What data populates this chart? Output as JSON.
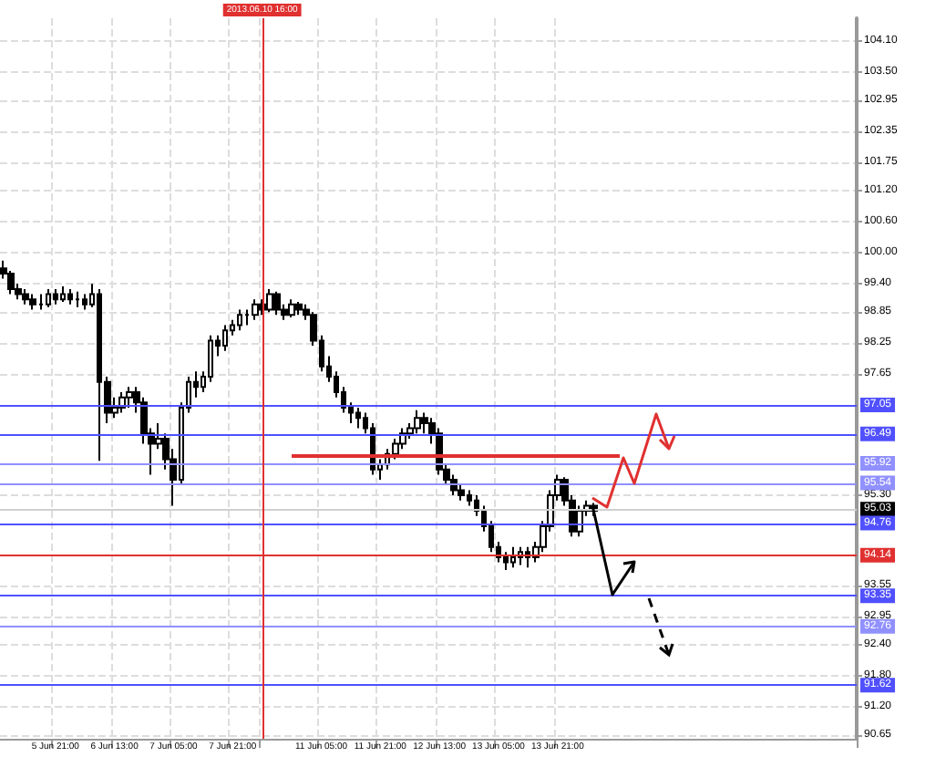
{
  "chart_data": {
    "type": "candlestick",
    "categories": [
      null,
      null,
      null,
      null,
      null,
      null,
      null,
      "5 Jun 21:00",
      null,
      null,
      null,
      null,
      null,
      null,
      null,
      "6 Jun 13:00",
      null,
      null,
      null,
      null,
      null,
      null,
      null,
      "7 Jun 05:00",
      null,
      null,
      null,
      null,
      null,
      null,
      null,
      "7 Jun 21:00",
      null,
      null,
      null,
      "2013.06.10 16:00",
      null,
      null,
      null,
      null,
      null,
      null,
      null,
      "11 Jun 05:00",
      null,
      null,
      null,
      null,
      null,
      null,
      null,
      "11 Jun 21:00",
      null,
      null,
      null,
      null,
      null,
      null,
      null,
      "12 Jun 13:00",
      null,
      null,
      null,
      null,
      null,
      null,
      null,
      "13 Jun 05:00",
      null,
      null,
      null,
      null,
      null,
      null,
      null,
      "13 Jun 21:00",
      null,
      null,
      null,
      null,
      null,
      null,
      null,
      null,
      null,
      null,
      null,
      null,
      null,
      null,
      null,
      null,
      null,
      null,
      null,
      null,
      null,
      null,
      null,
      null,
      null,
      null,
      null,
      null,
      null,
      null,
      null,
      null,
      null,
      null,
      null,
      null,
      null,
      null,
      null,
      null
    ],
    "ohlc": [
      [
        99.7,
        99.85,
        99.5,
        99.6
      ],
      [
        99.6,
        99.65,
        99.2,
        99.3
      ],
      [
        99.3,
        99.4,
        99.1,
        99.2
      ],
      [
        99.2,
        99.3,
        99.0,
        99.1
      ],
      [
        99.1,
        99.2,
        98.9,
        99.0
      ],
      [
        99.0,
        99.2,
        98.9,
        99.0
      ],
      [
        99.0,
        99.3,
        98.95,
        99.2
      ],
      [
        99.2,
        99.3,
        99.0,
        99.1
      ],
      [
        99.1,
        99.35,
        99.05,
        99.2
      ],
      [
        99.2,
        99.3,
        99.0,
        99.1
      ],
      [
        99.1,
        99.25,
        98.95,
        99.1
      ],
      [
        99.1,
        99.2,
        98.9,
        99.0
      ],
      [
        99.0,
        99.4,
        98.95,
        99.2
      ],
      [
        99.2,
        99.3,
        95.97,
        97.5
      ],
      [
        97.5,
        97.6,
        96.7,
        96.9
      ],
      [
        96.9,
        97.2,
        96.8,
        97.0
      ],
      [
        97.0,
        97.3,
        96.9,
        97.2
      ],
      [
        97.2,
        97.4,
        97.0,
        97.3
      ],
      [
        97.3,
        97.4,
        96.9,
        97.1
      ],
      [
        97.1,
        97.2,
        96.3,
        96.5
      ],
      [
        96.5,
        96.6,
        95.7,
        96.3
      ],
      [
        96.3,
        96.7,
        96.2,
        96.4
      ],
      [
        96.4,
        96.5,
        95.8,
        96.0
      ],
      [
        96.0,
        96.2,
        95.1,
        95.6
      ],
      [
        95.6,
        97.1,
        95.5,
        97.0
      ],
      [
        97.0,
        97.6,
        96.9,
        97.5
      ],
      [
        97.5,
        97.7,
        97.2,
        97.4
      ],
      [
        97.4,
        97.7,
        97.3,
        97.6
      ],
      [
        97.6,
        98.4,
        97.5,
        98.3
      ],
      [
        98.3,
        98.4,
        98.0,
        98.2
      ],
      [
        98.2,
        98.6,
        98.1,
        98.5
      ],
      [
        98.5,
        98.7,
        98.4,
        98.6
      ],
      [
        98.6,
        98.9,
        98.5,
        98.8
      ],
      [
        98.8,
        98.9,
        98.6,
        98.8
      ],
      [
        98.8,
        99.1,
        98.7,
        99.0
      ],
      [
        99.0,
        99.1,
        98.8,
        98.9
      ],
      [
        98.9,
        99.3,
        98.85,
        99.2
      ],
      [
        99.2,
        99.25,
        98.8,
        98.9
      ],
      [
        98.9,
        99.0,
        98.7,
        98.8
      ],
      [
        98.8,
        99.1,
        98.75,
        99.0
      ],
      [
        99.0,
        99.05,
        98.8,
        98.9
      ],
      [
        98.9,
        99.0,
        98.7,
        98.8
      ],
      [
        98.8,
        98.85,
        98.2,
        98.3
      ],
      [
        98.3,
        98.4,
        97.7,
        97.8
      ],
      [
        97.8,
        98.0,
        97.5,
        97.6
      ],
      [
        97.6,
        97.7,
        97.2,
        97.3
      ],
      [
        97.3,
        97.4,
        96.9,
        97.0
      ],
      [
        97.0,
        97.1,
        96.7,
        96.9
      ],
      [
        96.9,
        97.0,
        96.6,
        96.8
      ],
      [
        96.8,
        96.9,
        96.5,
        96.6
      ],
      [
        96.6,
        96.7,
        95.7,
        95.8
      ],
      [
        95.8,
        96.0,
        95.6,
        95.9
      ],
      [
        95.9,
        96.2,
        95.8,
        96.1
      ],
      [
        96.1,
        96.4,
        96.0,
        96.3
      ],
      [
        96.3,
        96.6,
        96.2,
        96.5
      ],
      [
        96.5,
        96.7,
        96.4,
        96.6
      ],
      [
        96.6,
        96.95,
        96.5,
        96.8
      ],
      [
        96.8,
        96.9,
        96.5,
        96.7
      ],
      [
        96.7,
        96.8,
        96.3,
        96.5
      ],
      [
        96.5,
        96.6,
        95.7,
        95.8
      ],
      [
        95.8,
        95.9,
        95.5,
        95.6
      ],
      [
        95.6,
        95.7,
        95.3,
        95.4
      ],
      [
        95.4,
        95.5,
        95.2,
        95.3
      ],
      [
        95.3,
        95.4,
        95.1,
        95.2
      ],
      [
        95.2,
        95.3,
        94.9,
        95.0
      ],
      [
        95.0,
        95.1,
        94.6,
        94.7
      ],
      [
        94.7,
        94.8,
        94.2,
        94.3
      ],
      [
        94.3,
        94.4,
        94.0,
        94.1
      ],
      [
        94.1,
        94.2,
        93.85,
        94.0
      ],
      [
        94.0,
        94.3,
        93.9,
        94.1
      ],
      [
        94.1,
        94.3,
        93.95,
        94.2
      ],
      [
        94.2,
        94.3,
        93.9,
        94.1
      ],
      [
        94.1,
        94.4,
        94.0,
        94.3
      ],
      [
        94.3,
        94.8,
        94.2,
        94.7
      ],
      [
        94.7,
        95.4,
        94.6,
        95.3
      ],
      [
        95.3,
        95.7,
        95.2,
        95.6
      ],
      [
        95.6,
        95.65,
        95.1,
        95.2
      ],
      [
        95.2,
        95.3,
        94.5,
        94.6
      ],
      [
        94.6,
        95.1,
        94.5,
        95.0
      ],
      [
        95.0,
        95.2,
        94.9,
        95.1
      ],
      [
        95.1,
        95.15,
        94.9,
        95.0
      ],
      null,
      null,
      null,
      null,
      null,
      null,
      null,
      null,
      null,
      null,
      null,
      null,
      null,
      null,
      null,
      null,
      null,
      null,
      null,
      null,
      null,
      null,
      null,
      null,
      null,
      null,
      null,
      null,
      null,
      null,
      null,
      null,
      null,
      null,
      null
    ],
    "ylim": [
      90.58,
      104.55
    ],
    "yticks": [
      {
        "value": 104.1,
        "label": "104.10"
      },
      {
        "value": 103.5,
        "label": "103.50"
      },
      {
        "value": 102.95,
        "label": "102.95"
      },
      {
        "value": 102.35,
        "label": "102.35"
      },
      {
        "value": 101.75,
        "label": "101.75"
      },
      {
        "value": 101.2,
        "label": "101.20"
      },
      {
        "value": 100.6,
        "label": "100.60"
      },
      {
        "value": 100,
        "label": "100.00"
      },
      {
        "value": 99.4,
        "label": "99.40"
      },
      {
        "value": 98.85,
        "label": "98.85"
      },
      {
        "value": 98.25,
        "label": "98.25"
      },
      {
        "value": 97.65,
        "label": "97.65"
      },
      {
        "value": 95.3,
        "label": "95.30"
      },
      {
        "value": 93.55,
        "label": "93.55"
      },
      {
        "value": 92.95,
        "label": "92.95"
      },
      {
        "value": 92.4,
        "label": "92.40"
      },
      {
        "value": 91.8,
        "label": "91.80"
      },
      {
        "value": 91.2,
        "label": "91.20"
      },
      {
        "value": 90.65,
        "label": "90.65"
      }
    ],
    "ref_lines": [
      {
        "axis": "y",
        "value": 97.05,
        "label": "97.05",
        "color": "#5050ff"
      },
      {
        "axis": "y",
        "value": 96.49,
        "label": "96.49",
        "color": "#5050ff"
      },
      {
        "axis": "y",
        "value": 95.92,
        "label": "95.92",
        "color": "#9090ff"
      },
      {
        "axis": "y",
        "value": 95.54,
        "label": "95.54",
        "color": "#9090ff"
      },
      {
        "axis": "y",
        "value": 95.03,
        "label": "95.03",
        "color": "#d0d0d0"
      },
      {
        "axis": "y",
        "value": 94.76,
        "label": "94.76",
        "color": "#5050ff"
      },
      {
        "axis": "y",
        "value": 94.14,
        "label": "94.14",
        "color": "#e03030"
      },
      {
        "axis": "y",
        "value": 93.35,
        "label": "93.35",
        "color": "#5050ff"
      },
      {
        "axis": "y",
        "value": 92.76,
        "label": "92.76",
        "color": "#9090ff"
      },
      {
        "axis": "y",
        "value": 91.62,
        "label": "91.62",
        "color": "#5050ff"
      },
      {
        "axis": "x",
        "value": "2013.06.10 16:00",
        "color": "#e03030"
      }
    ],
    "grid": true
  }
}
